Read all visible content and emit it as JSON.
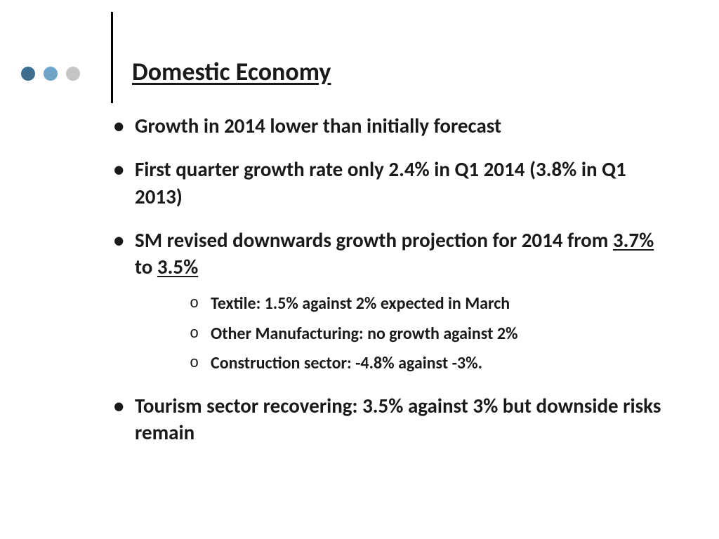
{
  "title": "Domestic Economy",
  "dots": {
    "colors": [
      "#3d6e8f",
      "#6fa3c7",
      "#c5c5c5"
    ]
  },
  "bullets": {
    "b1": "Growth in 2014 lower than initially forecast",
    "b2": "First quarter growth rate only 2.4% in Q1 2014 (3.8% in Q1 2013)",
    "b3_pre": "SM revised downwards growth projection for 2014 from ",
    "b3_u1": "3.7%",
    "b3_mid": " to ",
    "b3_u2": "3.5%",
    "b4": "Tourism sector recovering: 3.5% against 3% but downside risks remain"
  },
  "sub": {
    "s1": "Textile: 1.5% against 2% expected in March",
    "s2": "Other Manufacturing: no growth against 2%",
    "s3": "Construction sector: -4.8% against -3%."
  },
  "styles": {
    "title_fontsize": 36,
    "bullet_fontsize": 29,
    "sub_fontsize": 24,
    "text_color": "#1a1a1a",
    "background_color": "#ffffff",
    "divider_color": "#000000"
  }
}
